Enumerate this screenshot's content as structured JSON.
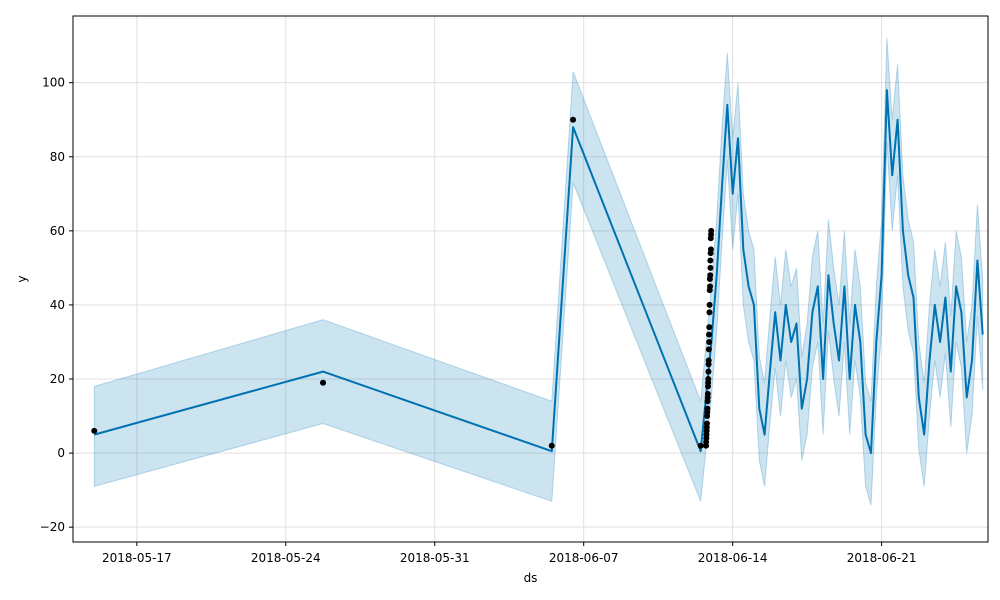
{
  "chart_data": {
    "type": "line",
    "title": "",
    "xlabel": "ds",
    "ylabel": "y",
    "xlim": [
      "2018-05-14T00:00",
      "2018-06-26T00:00"
    ],
    "ylim": [
      -24,
      118
    ],
    "x_ticks": [
      "2018-05-17",
      "2018-05-24",
      "2018-05-31",
      "2018-06-07",
      "2018-06-14",
      "2018-06-21"
    ],
    "y_ticks": [
      -20,
      0,
      20,
      40,
      60,
      80,
      100
    ],
    "grid": true,
    "colors": {
      "forecast": "#0072b2",
      "band": "#0072b2",
      "observed": "#000000"
    },
    "forecast": {
      "x": [
        "2018-05-15T00:00",
        "2018-05-25T18:00",
        "2018-06-05T12:00",
        "2018-06-06T12:00",
        "2018-06-12T12:00",
        "2018-06-13T00:00",
        "2018-06-13T06:00",
        "2018-06-13T12:00",
        "2018-06-13T18:00",
        "2018-06-14T00:00",
        "2018-06-14T06:00",
        "2018-06-14T12:00",
        "2018-06-14T18:00",
        "2018-06-15T00:00",
        "2018-06-15T06:00",
        "2018-06-15T12:00",
        "2018-06-15T18:00",
        "2018-06-16T00:00",
        "2018-06-16T06:00",
        "2018-06-16T12:00",
        "2018-06-16T18:00",
        "2018-06-17T00:00",
        "2018-06-17T06:00",
        "2018-06-17T12:00",
        "2018-06-17T18:00",
        "2018-06-18T00:00",
        "2018-06-18T06:00",
        "2018-06-18T12:00",
        "2018-06-18T18:00",
        "2018-06-19T00:00",
        "2018-06-19T06:00",
        "2018-06-19T12:00",
        "2018-06-19T18:00",
        "2018-06-20T00:00",
        "2018-06-20T06:00",
        "2018-06-20T12:00",
        "2018-06-20T18:00",
        "2018-06-21T00:00",
        "2018-06-21T06:00",
        "2018-06-21T12:00",
        "2018-06-21T18:00",
        "2018-06-22T00:00",
        "2018-06-22T06:00",
        "2018-06-22T12:00",
        "2018-06-22T18:00",
        "2018-06-23T00:00",
        "2018-06-23T06:00",
        "2018-06-23T12:00",
        "2018-06-23T18:00",
        "2018-06-24T00:00",
        "2018-06-24T06:00",
        "2018-06-24T12:00",
        "2018-06-24T18:00",
        "2018-06-25T00:00",
        "2018-06-25T06:00",
        "2018-06-25T12:00",
        "2018-06-25T18:00"
      ],
      "yhat": [
        5,
        22,
        0.5,
        88,
        0.5,
        30,
        48,
        72,
        94,
        70,
        85,
        55,
        45,
        40,
        12,
        5,
        22,
        38,
        25,
        40,
        30,
        35,
        12,
        20,
        38,
        45,
        20,
        48,
        35,
        25,
        45,
        20,
        40,
        30,
        5,
        0,
        30,
        48,
        98,
        75,
        90,
        60,
        48,
        42,
        15,
        5,
        25,
        40,
        30,
        42,
        22,
        45,
        38,
        15,
        25,
        52,
        32
      ],
      "yhat_upper": [
        18,
        36,
        14,
        103,
        14,
        45,
        63,
        88,
        108,
        85,
        100,
        70,
        60,
        55,
        26,
        19,
        37,
        53,
        40,
        55,
        45,
        50,
        26,
        35,
        53,
        60,
        35,
        63,
        50,
        40,
        60,
        35,
        55,
        45,
        19,
        14,
        45,
        63,
        112,
        90,
        105,
        75,
        63,
        57,
        30,
        19,
        40,
        55,
        45,
        57,
        37,
        60,
        53,
        30,
        40,
        67,
        47
      ],
      "yhat_lower": [
        -9,
        8,
        -13,
        73,
        -13,
        15,
        33,
        57,
        79,
        55,
        70,
        40,
        30,
        25,
        -2,
        -9,
        8,
        23,
        10,
        25,
        15,
        20,
        -2,
        5,
        23,
        30,
        5,
        33,
        20,
        10,
        30,
        5,
        25,
        15,
        -9,
        -14,
        15,
        33,
        84,
        60,
        75,
        45,
        33,
        27,
        1,
        -9,
        10,
        25,
        15,
        27,
        7,
        30,
        23,
        0,
        10,
        37,
        17
      ]
    },
    "observed": {
      "x": [
        "2018-05-15T00:00",
        "2018-05-25T18:00",
        "2018-06-05T12:00",
        "2018-06-06T12:00",
        "2018-06-12T12:00",
        "2018-06-12T18:00",
        "2018-06-12T18:30",
        "2018-06-12T19:00",
        "2018-06-12T19:30",
        "2018-06-12T20:00",
        "2018-06-12T20:30",
        "2018-06-12T21:00",
        "2018-06-12T21:30",
        "2018-06-12T22:00",
        "2018-06-12T22:30",
        "2018-06-12T23:00",
        "2018-06-12T23:30",
        "2018-06-12T18:10",
        "2018-06-12T18:20",
        "2018-06-12T18:40",
        "2018-06-12T19:10",
        "2018-06-12T19:40",
        "2018-06-12T20:10",
        "2018-06-12T20:40",
        "2018-06-12T21:10",
        "2018-06-12T21:40",
        "2018-06-12T22:10",
        "2018-06-12T22:40",
        "2018-06-12T23:10",
        "2018-06-12T23:40",
        "2018-06-12T18:50",
        "2018-06-12T19:20",
        "2018-06-12T19:50",
        "2018-06-12T20:20",
        "2018-06-12T20:50",
        "2018-06-12T21:20",
        "2018-06-12T21:50",
        "2018-06-12T22:20",
        "2018-06-12T22:50",
        "2018-06-12T23:20",
        "2018-06-12T23:50"
      ],
      "y": [
        6,
        19,
        2,
        90,
        2,
        2,
        5,
        8,
        12,
        16,
        20,
        25,
        30,
        40,
        45,
        50,
        55,
        3,
        4,
        6,
        10,
        14,
        18,
        22,
        28,
        34,
        44,
        48,
        54,
        59,
        7,
        11,
        15,
        19,
        24,
        32,
        38,
        47,
        52,
        58,
        60
      ]
    }
  }
}
